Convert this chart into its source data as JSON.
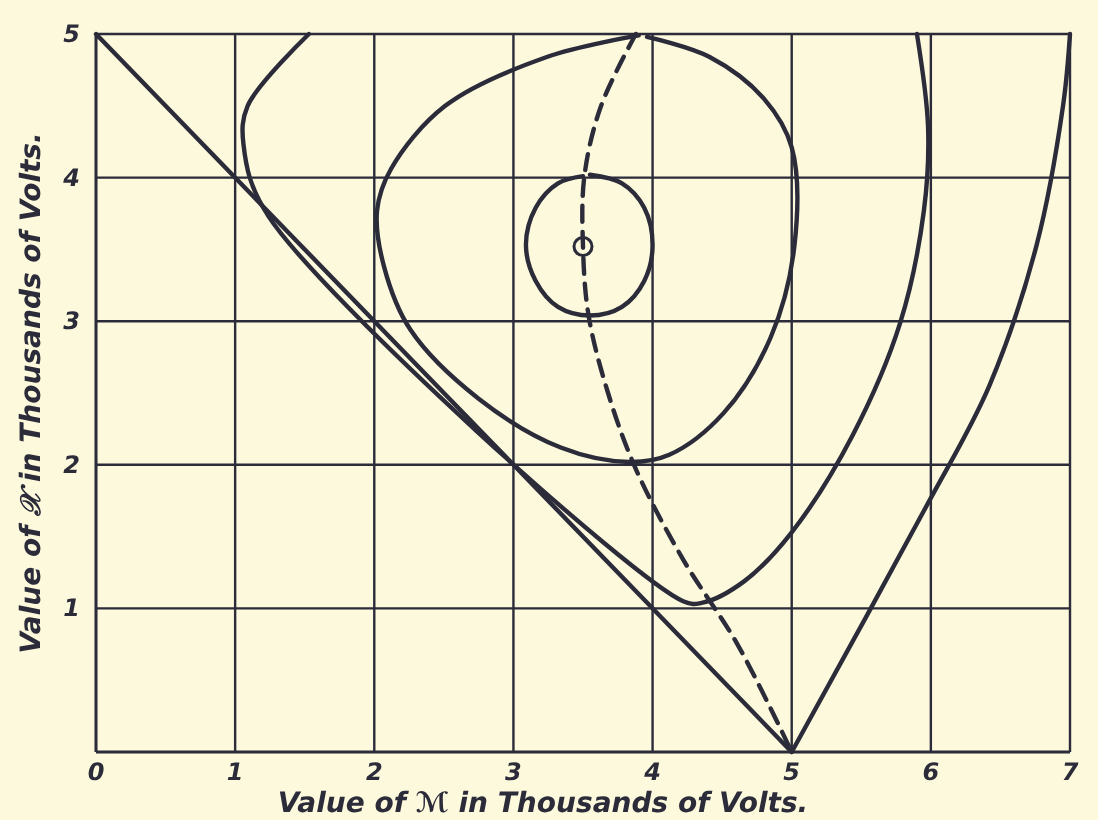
{
  "chart_data": {
    "type": "line",
    "xlabel": "Value of ℳ in Thousands of Volts.",
    "ylabel": "Value of 𝒳 in Thousands of Volts.",
    "xlim": [
      0,
      7
    ],
    "ylim": [
      0,
      5
    ],
    "xticks": [
      0,
      1,
      2,
      3,
      4,
      5,
      6,
      7
    ],
    "yticks": [
      1,
      2,
      3,
      4,
      5
    ],
    "grid": true,
    "marker": "none",
    "series": [
      {
        "color": "#2b2b3a",
        "x": [
          0,
          2.5,
          5
        ],
        "values": [
          5,
          2.5,
          0
        ]
      },
      {
        "color": "#2b2b3a",
        "x": [
          1.53,
          1.09,
          1.06,
          1.24,
          4.22,
          4.36,
          4.66,
          5.0,
          5.44,
          5.78,
          5.95,
          5.98,
          5.9
        ],
        "values": [
          5,
          4.5,
          4.23,
          3.73,
          1.05,
          1.04,
          1.19,
          1.53,
          2.21,
          2.99,
          3.77,
          4.35,
          5
        ]
      },
      {
        "color": "#2b2b3a",
        "x": [
          3.9,
          3.24,
          2.51,
          2.12,
          2.02,
          2.07,
          2.26,
          2.75,
          3.34,
          3.83,
          4.12,
          4.51,
          4.85,
          5.02,
          5.0,
          4.8,
          4.41,
          3.96
        ],
        "values": [
          4.99,
          4.84,
          4.5,
          4.06,
          3.77,
          3.38,
          2.94,
          2.46,
          2.12,
          2.02,
          2.07,
          2.36,
          2.89,
          3.53,
          4.21,
          4.55,
          4.84,
          4.98
        ]
      },
      {
        "color": "#2b2b3a",
        "x": [
          3.55,
          3.78,
          3.94,
          4.0,
          3.94,
          3.78,
          3.55,
          3.32,
          3.16,
          3.09,
          3.16,
          3.32,
          3.5
        ],
        "values": [
          4.02,
          3.96,
          3.79,
          3.53,
          3.28,
          3.1,
          3.04,
          3.1,
          3.28,
          3.53,
          3.79,
          3.96,
          4.01
        ]
      },
      {
        "color": "#2b2b3a",
        "line_style": "dashed",
        "x": [
          3.88,
          3.63,
          3.51,
          3.5,
          3.54,
          3.68,
          3.88,
          4.22,
          4.61,
          5.0
        ],
        "values": [
          5,
          4.5,
          4.01,
          3.52,
          3.04,
          2.5,
          1.97,
          1.34,
          0.75,
          0
        ]
      },
      {
        "color": "#2b2b3a",
        "x": [
          5,
          5.95,
          6.42,
          6.76,
          6.95,
          7.0
        ],
        "values": [
          0,
          1.68,
          2.55,
          3.53,
          4.5,
          5
        ]
      },
      {
        "type": "scatter",
        "marker": "circle",
        "color": "#2b2b3a",
        "x": [
          3.5
        ],
        "values": [
          3.52
        ]
      }
    ]
  }
}
